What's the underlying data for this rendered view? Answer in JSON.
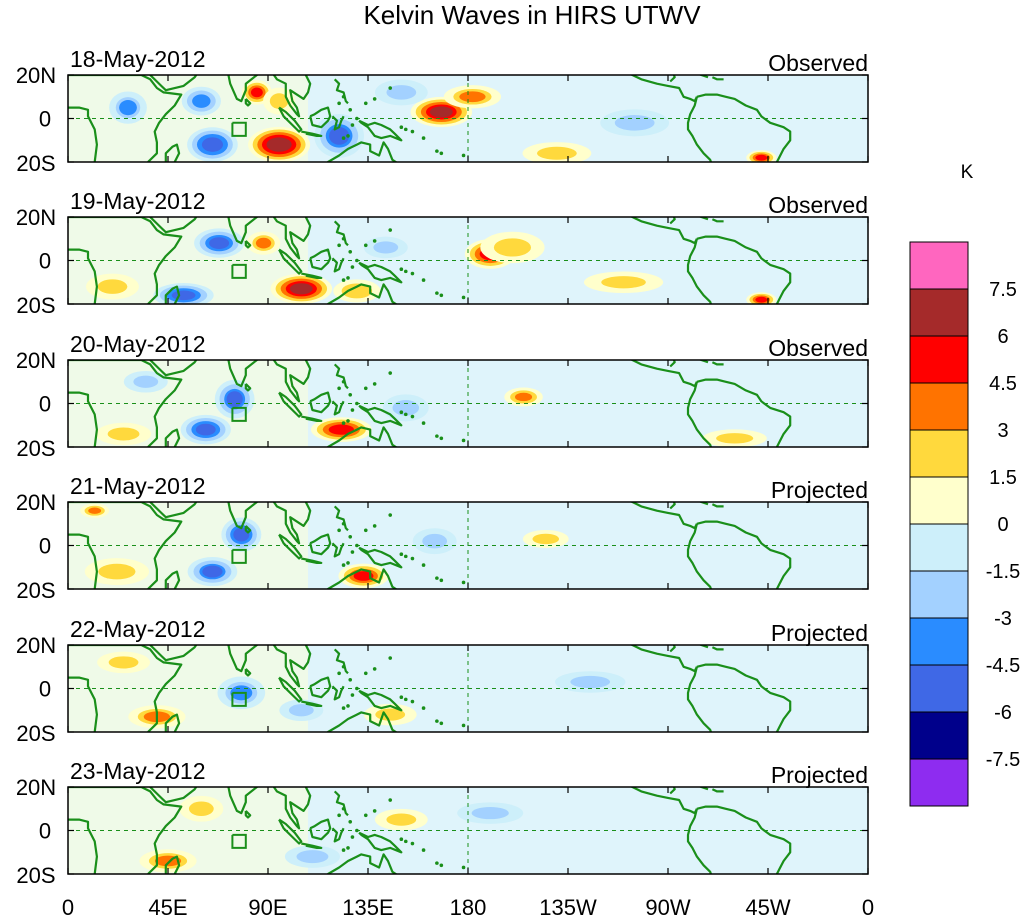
{
  "title": "Kelvin Waves in HIRS UTWV",
  "panels": [
    {
      "date": "18-May-2012",
      "status": "Observed",
      "blobs": [
        {
          "lon": 95,
          "lat": -12,
          "value": 7.2,
          "rx": 12,
          "ry": 7
        },
        {
          "lon": 85,
          "lat": 12,
          "value": 5.0,
          "rx": 6,
          "ry": 5
        },
        {
          "lon": 95,
          "lat": 8,
          "value": 2.5,
          "rx": 7,
          "ry": 6
        },
        {
          "lon": 168,
          "lat": 3,
          "value": 6.4,
          "rx": 12,
          "ry": 6
        },
        {
          "lon": 182,
          "lat": 10,
          "value": 3.2,
          "rx": 12,
          "ry": 5
        },
        {
          "lon": 122,
          "lat": -8,
          "value": -4.6,
          "rx": 10,
          "ry": 9
        },
        {
          "lon": 65,
          "lat": -12,
          "value": -5.5,
          "rx": 10,
          "ry": 7
        },
        {
          "lon": 60,
          "lat": 8,
          "value": -4.0,
          "rx": 8,
          "ry": 6
        },
        {
          "lon": 27,
          "lat": 5,
          "value": -3.0,
          "rx": 8,
          "ry": 7
        },
        {
          "lon": 255,
          "lat": -2,
          "value": -2.5,
          "rx": 15,
          "ry": 6
        },
        {
          "lon": 312,
          "lat": -18,
          "value": 5.0,
          "rx": 6,
          "ry": 3
        },
        {
          "lon": 220,
          "lat": -16,
          "value": 2.5,
          "rx": 15,
          "ry": 5
        },
        {
          "lon": 150,
          "lat": 12,
          "value": -2.0,
          "rx": 12,
          "ry": 6
        }
      ]
    },
    {
      "date": "19-May-2012",
      "status": "Observed",
      "blobs": [
        {
          "lon": 105,
          "lat": -13,
          "value": 6.5,
          "rx": 12,
          "ry": 6
        },
        {
          "lon": 130,
          "lat": -14,
          "value": 3.0,
          "rx": 10,
          "ry": 5
        },
        {
          "lon": 190,
          "lat": 3,
          "value": 5.5,
          "rx": 10,
          "ry": 6
        },
        {
          "lon": 200,
          "lat": 6,
          "value": 2.5,
          "rx": 14,
          "ry": 7
        },
        {
          "lon": 68,
          "lat": 8,
          "value": -4.8,
          "rx": 10,
          "ry": 6
        },
        {
          "lon": 52,
          "lat": -16,
          "value": -5.0,
          "rx": 12,
          "ry": 5
        },
        {
          "lon": 88,
          "lat": 8,
          "value": 3.2,
          "rx": 7,
          "ry": 5
        },
        {
          "lon": 143,
          "lat": 6,
          "value": -2.0,
          "rx": 10,
          "ry": 5
        },
        {
          "lon": 312,
          "lat": -18,
          "value": 5.0,
          "rx": 6,
          "ry": 3
        },
        {
          "lon": 250,
          "lat": -10,
          "value": 2.0,
          "rx": 18,
          "ry": 5
        },
        {
          "lon": 20,
          "lat": -12,
          "value": 2.0,
          "rx": 12,
          "ry": 6
        }
      ]
    },
    {
      "date": "20-May-2012",
      "status": "Observed",
      "blobs": [
        {
          "lon": 123,
          "lat": -12,
          "value": 5.5,
          "rx": 12,
          "ry": 5
        },
        {
          "lon": 205,
          "lat": 3,
          "value": 3.5,
          "rx": 8,
          "ry": 4
        },
        {
          "lon": 75,
          "lat": 2,
          "value": -4.5,
          "rx": 8,
          "ry": 8
        },
        {
          "lon": 62,
          "lat": -12,
          "value": -5.0,
          "rx": 10,
          "ry": 6
        },
        {
          "lon": 152,
          "lat": -2,
          "value": -2.5,
          "rx": 10,
          "ry": 6
        },
        {
          "lon": 25,
          "lat": -14,
          "value": 2.5,
          "rx": 12,
          "ry": 5
        },
        {
          "lon": 300,
          "lat": -16,
          "value": 2.5,
          "rx": 14,
          "ry": 4
        },
        {
          "lon": 35,
          "lat": 10,
          "value": -2.0,
          "rx": 10,
          "ry": 5
        }
      ]
    },
    {
      "date": "21-May-2012",
      "status": "Projected",
      "blobs": [
        {
          "lon": 133,
          "lat": -14,
          "value": 5.0,
          "rx": 10,
          "ry": 5
        },
        {
          "lon": 78,
          "lat": 5,
          "value": -4.8,
          "rx": 8,
          "ry": 7
        },
        {
          "lon": 65,
          "lat": -12,
          "value": -4.5,
          "rx": 10,
          "ry": 6
        },
        {
          "lon": 22,
          "lat": -12,
          "value": 2.5,
          "rx": 14,
          "ry": 6
        },
        {
          "lon": 215,
          "lat": 3,
          "value": 2.5,
          "rx": 10,
          "ry": 4
        },
        {
          "lon": 165,
          "lat": 2,
          "value": -2.0,
          "rx": 10,
          "ry": 6
        },
        {
          "lon": 12,
          "lat": 16,
          "value": 3.5,
          "rx": 6,
          "ry": 3
        }
      ]
    },
    {
      "date": "22-May-2012",
      "status": "Projected",
      "blobs": [
        {
          "lon": 40,
          "lat": -13,
          "value": 3.2,
          "rx": 12,
          "ry": 5
        },
        {
          "lon": 78,
          "lat": -2,
          "value": -3.2,
          "rx": 10,
          "ry": 7
        },
        {
          "lon": 105,
          "lat": -10,
          "value": -2.0,
          "rx": 10,
          "ry": 5
        },
        {
          "lon": 25,
          "lat": 12,
          "value": 2.0,
          "rx": 12,
          "ry": 5
        },
        {
          "lon": 145,
          "lat": -12,
          "value": 2.0,
          "rx": 12,
          "ry": 5
        },
        {
          "lon": 235,
          "lat": 3,
          "value": -2.0,
          "rx": 16,
          "ry": 5
        }
      ]
    },
    {
      "date": "23-May-2012",
      "status": "Projected",
      "blobs": [
        {
          "lon": 45,
          "lat": -14,
          "value": 3.2,
          "rx": 12,
          "ry": 5
        },
        {
          "lon": 110,
          "lat": -12,
          "value": -2.5,
          "rx": 12,
          "ry": 5
        },
        {
          "lon": 60,
          "lat": 10,
          "value": 2.0,
          "rx": 10,
          "ry": 6
        },
        {
          "lon": 190,
          "lat": 8,
          "value": -2.0,
          "rx": 15,
          "ry": 5
        },
        {
          "lon": 150,
          "lat": 5,
          "value": 2.0,
          "rx": 12,
          "ry": 5
        }
      ]
    }
  ],
  "lat_labels": [
    "20N",
    "0",
    "20S"
  ],
  "lon_labels": [
    "0",
    "45E",
    "90E",
    "135E",
    "180",
    "135W",
    "90W",
    "45W",
    "0"
  ],
  "colorbar": {
    "unit": "K",
    "labels": [
      "7.5",
      "6",
      "4.5",
      "3",
      "1.5",
      "0",
      "-1.5",
      "-3",
      "-4.5",
      "-6",
      "-7.5"
    ],
    "colors": [
      "#ff66bf",
      "#a52a2a",
      "#ff0000",
      "#ff7300",
      "#ffd93d",
      "#ffffcc",
      "#cdeffa",
      "#a3d1ff",
      "#2a8cff",
      "#3f68e6",
      "#00008b",
      "#8e2cf0"
    ]
  },
  "land_color": "#1a8f1a",
  "grid_color": "#1a8f1a"
}
